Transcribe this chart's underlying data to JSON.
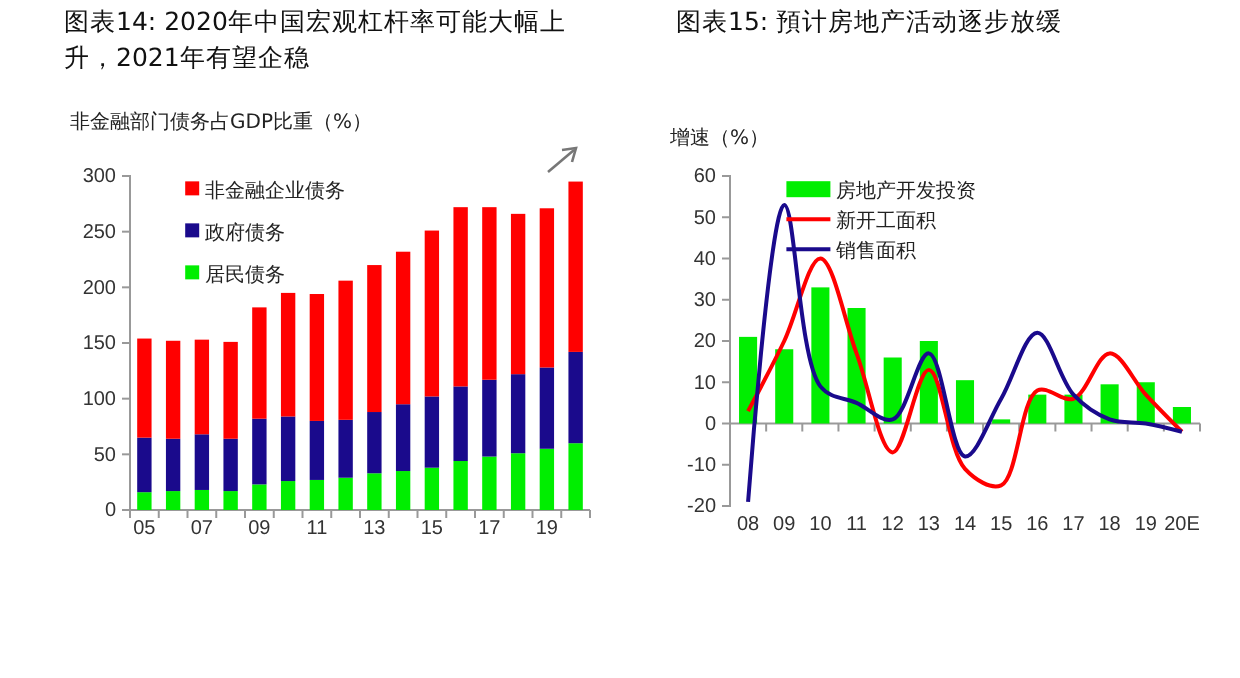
{
  "chart_data": [
    {
      "type": "bar",
      "title": "图表14: 2020年中国宏观杠杆率可能大幅上升，2021年有望企稳",
      "ylabel": "非金融部门债务占GDP比重（%）",
      "stacked": true,
      "legend": "top left",
      "categories": [
        "05",
        null,
        "07",
        null,
        "09",
        null,
        "11",
        null,
        "13",
        null,
        "15",
        null,
        "17",
        null,
        "19",
        null
      ],
      "series": [
        {
          "name": "居民债务",
          "color": "#00ee00",
          "values": [
            16,
            17,
            18,
            17,
            23,
            26,
            27,
            29,
            33,
            35,
            38,
            44,
            48,
            51,
            55,
            60
          ]
        },
        {
          "name": "政府债务",
          "color": "#1a0a8c",
          "values": [
            49,
            47,
            50,
            47,
            59,
            58,
            53,
            52,
            55,
            60,
            64,
            67,
            69,
            71,
            73,
            82
          ]
        },
        {
          "name": "非金融企业债务",
          "color": "#ff0000",
          "values": [
            89,
            88,
            85,
            87,
            100,
            111,
            114,
            125,
            132,
            137,
            149,
            161,
            155,
            144,
            143,
            153
          ]
        }
      ],
      "ylim": [
        0,
        300
      ],
      "yticks": [
        0,
        50,
        100,
        150,
        200,
        250,
        300
      ]
    },
    {
      "type": "bar",
      "title": "图表15: 預计房地产活动逐步放缓",
      "ylabel": "增速（%）",
      "legend": "top",
      "categories": [
        "08",
        "09",
        "10",
        "11",
        "12",
        "13",
        "14",
        "15",
        "16",
        "17",
        "18",
        "19",
        "20E"
      ],
      "series": [
        {
          "name": "房地产开发投资",
          "color": "#00ee00",
          "values": [
            21,
            18,
            33,
            28,
            16,
            20,
            10.5,
            1,
            7,
            7,
            9.5,
            10,
            4
          ]
        },
        {
          "name": "新开工面积",
          "type": "line",
          "color": "#ff0000",
          "values": [
            3,
            20,
            40,
            17,
            -7,
            13,
            -11,
            -15,
            8,
            6,
            17,
            7,
            -2
          ]
        },
        {
          "name": "销售面积",
          "type": "line",
          "color": "#1a0a8c",
          "values": [
            -19,
            53,
            9,
            5,
            1,
            17,
            -8,
            6,
            22,
            7,
            1,
            0,
            -2
          ]
        }
      ],
      "ylim": [
        -20,
        60
      ],
      "yticks": [
        -20,
        -10,
        0,
        10,
        20,
        30,
        40,
        50,
        60
      ]
    }
  ]
}
